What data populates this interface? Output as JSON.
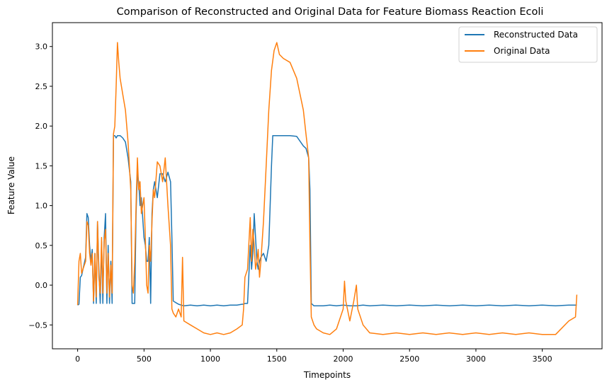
{
  "chart_data": {
    "type": "line",
    "title": "Comparison of Reconstructed and Original Data for Feature Biomass Reaction Ecoli",
    "xlabel": "Timepoints",
    "ylabel": "Feature Value",
    "xlim": [
      -190,
      3950
    ],
    "ylim": [
      -0.8,
      3.3
    ],
    "xticks": [
      0,
      500,
      1000,
      1500,
      2000,
      2500,
      3000,
      3500
    ],
    "yticks": [
      -0.5,
      0.0,
      0.5,
      1.0,
      1.5,
      2.0,
      2.5,
      3.0
    ],
    "xtick_labels": [
      "0",
      "500",
      "1000",
      "1500",
      "2000",
      "2500",
      "3000",
      "3500"
    ],
    "ytick_labels": [
      "−0.5",
      "0.0",
      "0.5",
      "1.0",
      "1.5",
      "2.0",
      "2.5",
      "3.0"
    ],
    "grid": false,
    "legend_position": "top-right",
    "series": [
      {
        "name": "Reconstructed Data",
        "color": "#1f77b4",
        "x": [
          0,
          10,
          20,
          30,
          40,
          60,
          70,
          80,
          90,
          100,
          110,
          120,
          130,
          140,
          150,
          160,
          170,
          180,
          190,
          200,
          210,
          220,
          230,
          240,
          250,
          260,
          270,
          280,
          290,
          300,
          320,
          340,
          360,
          380,
          400,
          410,
          420,
          430,
          440,
          450,
          460,
          470,
          480,
          500,
          510,
          520,
          530,
          540,
          550,
          560,
          570,
          580,
          600,
          620,
          640,
          660,
          680,
          700,
          710,
          720,
          740,
          760,
          780,
          800,
          850,
          900,
          950,
          1000,
          1050,
          1100,
          1150,
          1200,
          1240,
          1250,
          1260,
          1280,
          1300,
          1310,
          1320,
          1330,
          1340,
          1350,
          1360,
          1370,
          1380,
          1400,
          1420,
          1440,
          1460,
          1470,
          1480,
          1500,
          1550,
          1600,
          1650,
          1700,
          1720,
          1740,
          1750,
          1760,
          1780,
          1800,
          1850,
          1900,
          1950,
          2000,
          2050,
          2100,
          2150,
          2200,
          2300,
          2400,
          2500,
          2600,
          2700,
          2800,
          2900,
          3000,
          3100,
          3200,
          3300,
          3400,
          3500,
          3600,
          3700,
          3760
        ],
        "values": [
          -0.25,
          -0.24,
          0.1,
          0.12,
          0.2,
          0.35,
          0.9,
          0.85,
          0.5,
          0.3,
          0.45,
          -0.23,
          0.4,
          -0.23,
          0.8,
          0.2,
          -0.23,
          0.55,
          -0.23,
          0.6,
          0.9,
          -0.23,
          0.5,
          -0.23,
          0.3,
          -0.23,
          1.88,
          1.88,
          1.85,
          1.88,
          1.88,
          1.85,
          1.8,
          1.6,
          1.3,
          -0.23,
          -0.23,
          -0.23,
          0.9,
          1.4,
          1.3,
          1.0,
          1.1,
          0.6,
          0.5,
          0.3,
          0.3,
          0.6,
          -0.23,
          0.9,
          1.2,
          1.3,
          1.1,
          1.4,
          1.4,
          1.3,
          1.42,
          1.3,
          0.6,
          -0.2,
          -0.22,
          -0.24,
          -0.25,
          -0.26,
          -0.25,
          -0.26,
          -0.25,
          -0.26,
          -0.25,
          -0.26,
          -0.25,
          -0.25,
          -0.24,
          -0.24,
          -0.23,
          -0.23,
          0.5,
          0.2,
          0.4,
          0.9,
          0.6,
          0.3,
          0.2,
          0.3,
          0.35,
          0.4,
          0.3,
          0.5,
          1.5,
          1.88,
          1.88,
          1.88,
          1.88,
          1.88,
          1.87,
          1.75,
          1.72,
          1.6,
          1.2,
          -0.23,
          -0.26,
          -0.26,
          -0.26,
          -0.25,
          -0.26,
          -0.25,
          -0.26,
          -0.26,
          -0.25,
          -0.26,
          -0.25,
          -0.26,
          -0.25,
          -0.26,
          -0.25,
          -0.26,
          -0.25,
          -0.26,
          -0.25,
          -0.26,
          -0.25,
          -0.26,
          -0.25,
          -0.26,
          -0.25,
          -0.25
        ]
      },
      {
        "name": "Original Data",
        "color": "#ff7f0e",
        "x": [
          0,
          10,
          20,
          30,
          40,
          60,
          70,
          80,
          90,
          100,
          110,
          120,
          130,
          140,
          150,
          160,
          170,
          180,
          190,
          200,
          210,
          220,
          230,
          240,
          250,
          260,
          270,
          280,
          290,
          300,
          310,
          320,
          340,
          360,
          380,
          400,
          410,
          420,
          430,
          440,
          450,
          460,
          470,
          480,
          500,
          510,
          520,
          530,
          540,
          550,
          560,
          570,
          580,
          600,
          620,
          640,
          660,
          680,
          700,
          710,
          720,
          740,
          760,
          780,
          790,
          800,
          850,
          900,
          950,
          1000,
          1050,
          1100,
          1150,
          1200,
          1240,
          1250,
          1260,
          1280,
          1300,
          1310,
          1320,
          1330,
          1340,
          1350,
          1360,
          1370,
          1380,
          1400,
          1420,
          1440,
          1460,
          1480,
          1500,
          1520,
          1550,
          1600,
          1650,
          1700,
          1720,
          1740,
          1750,
          1760,
          1780,
          1800,
          1850,
          1900,
          1950,
          2000,
          2010,
          2020,
          2050,
          2080,
          2100,
          2110,
          2150,
          2200,
          2300,
          2400,
          2500,
          2600,
          2700,
          2800,
          2900,
          3000,
          3100,
          3200,
          3300,
          3400,
          3500,
          3600,
          3700,
          3750,
          3760
        ],
        "values": [
          -0.25,
          0.3,
          0.4,
          0.15,
          0.2,
          0.3,
          0.8,
          0.75,
          0.4,
          0.25,
          0.4,
          -0.2,
          0.4,
          -0.15,
          0.8,
          0.1,
          -0.1,
          0.6,
          -0.1,
          0.55,
          0.7,
          -0.1,
          0.4,
          -0.15,
          0.25,
          -0.1,
          1.9,
          2.0,
          2.5,
          3.05,
          2.8,
          2.6,
          2.4,
          2.2,
          1.8,
          1.2,
          0.0,
          -0.1,
          0.3,
          1.0,
          1.6,
          1.2,
          1.3,
          0.9,
          1.1,
          0.6,
          0.0,
          -0.1,
          0.5,
          0.3,
          0.8,
          1.2,
          1.1,
          1.55,
          1.5,
          1.3,
          1.6,
          1.0,
          0.5,
          -0.3,
          -0.35,
          -0.4,
          -0.3,
          -0.4,
          0.35,
          -0.45,
          -0.5,
          -0.55,
          -0.6,
          -0.62,
          -0.6,
          -0.62,
          -0.6,
          -0.55,
          -0.5,
          -0.3,
          0.1,
          0.2,
          0.85,
          0.3,
          0.7,
          0.5,
          0.2,
          0.3,
          0.45,
          0.1,
          0.3,
          0.8,
          1.5,
          2.2,
          2.7,
          2.95,
          3.05,
          2.9,
          2.85,
          2.8,
          2.6,
          2.2,
          1.9,
          1.6,
          0.5,
          -0.4,
          -0.5,
          -0.55,
          -0.6,
          -0.62,
          -0.55,
          -0.3,
          0.05,
          -0.2,
          -0.45,
          -0.2,
          0.0,
          -0.3,
          -0.5,
          -0.6,
          -0.62,
          -0.6,
          -0.62,
          -0.6,
          -0.62,
          -0.6,
          -0.62,
          -0.6,
          -0.62,
          -0.6,
          -0.62,
          -0.6,
          -0.62,
          -0.62,
          -0.45,
          -0.4,
          -0.12
        ]
      }
    ]
  }
}
